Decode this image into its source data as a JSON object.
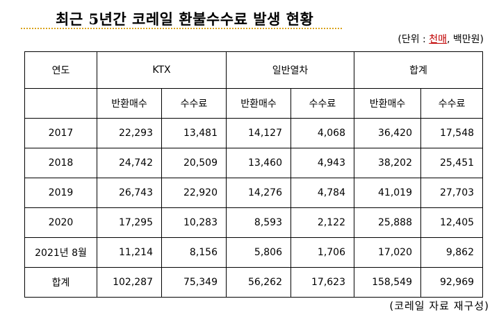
{
  "title": "최근 5년간 코레일 환불수수료 발생 현황",
  "unit": {
    "prefix": "(단위 : ",
    "highlight": "천매",
    "suffix": ", 백만원)"
  },
  "table": {
    "group_headers": [
      "연도",
      "KTX",
      "일반열차",
      "합계"
    ],
    "sub_headers": [
      "반환매수",
      "수수료",
      "반환매수",
      "수수료",
      "반환매수",
      "수수료"
    ],
    "rows": [
      {
        "year": "2017",
        "values": [
          "22,293",
          "13,481",
          "14,127",
          "4,068",
          "36,420",
          "17,548"
        ]
      },
      {
        "year": "2018",
        "values": [
          "24,742",
          "20,509",
          "13,460",
          "4,943",
          "38,202",
          "25,451"
        ]
      },
      {
        "year": "2019",
        "values": [
          "26,743",
          "22,920",
          "14,276",
          "4,784",
          "41,019",
          "27,703"
        ]
      },
      {
        "year": "2020",
        "values": [
          "17,295",
          "10,283",
          "8,593",
          "2,122",
          "25,888",
          "12,405"
        ]
      },
      {
        "year": "2021년 8월",
        "values": [
          "11,214",
          "8,156",
          "5,806",
          "1,706",
          "17,020",
          "9,862"
        ]
      },
      {
        "year": "합계",
        "values": [
          "102,287",
          "75,349",
          "56,262",
          "17,623",
          "158,549",
          "92,969"
        ]
      }
    ]
  },
  "source": "(코레일 자료 재구성)",
  "colors": {
    "underline": "#d9a21a",
    "unit_highlight": "#c00000"
  }
}
